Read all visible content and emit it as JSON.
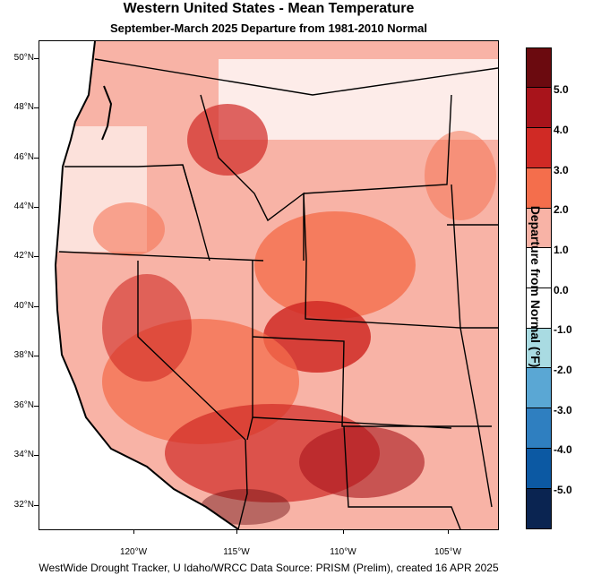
{
  "title": "Western United States - Mean Temperature",
  "subtitle": "September-March 2025  Departure from 1981-2010 Normal",
  "footer": "WestWide Drought Tracker, U Idaho/WRCC Data Source: PRISM (Prelim), created 16 APR 2025",
  "map": {
    "lat_labels": [
      "50°N",
      "48°N",
      "46°N",
      "44°N",
      "42°N",
      "40°N",
      "38°N",
      "36°N",
      "34°N",
      "32°N"
    ],
    "lon_labels": [
      "120°W",
      "115°W",
      "110°W",
      "105°W"
    ]
  },
  "legend": {
    "title": "Departure from Normal (°F)",
    "labels": [
      "5.0",
      "4.0",
      "3.0",
      "2.0",
      "1.0",
      "0.0",
      "-1.0",
      "-2.0",
      "-3.0",
      "-4.0",
      "-5.0"
    ],
    "colors": [
      "#6b0a0f",
      "#a8141b",
      "#d02a25",
      "#f46e4c",
      "#f8b3a6",
      "#ffffff",
      "#ffffff",
      "#a9dbe2",
      "#5aa7d4",
      "#2f7fc0",
      "#0c59a3",
      "#0a2451"
    ]
  }
}
